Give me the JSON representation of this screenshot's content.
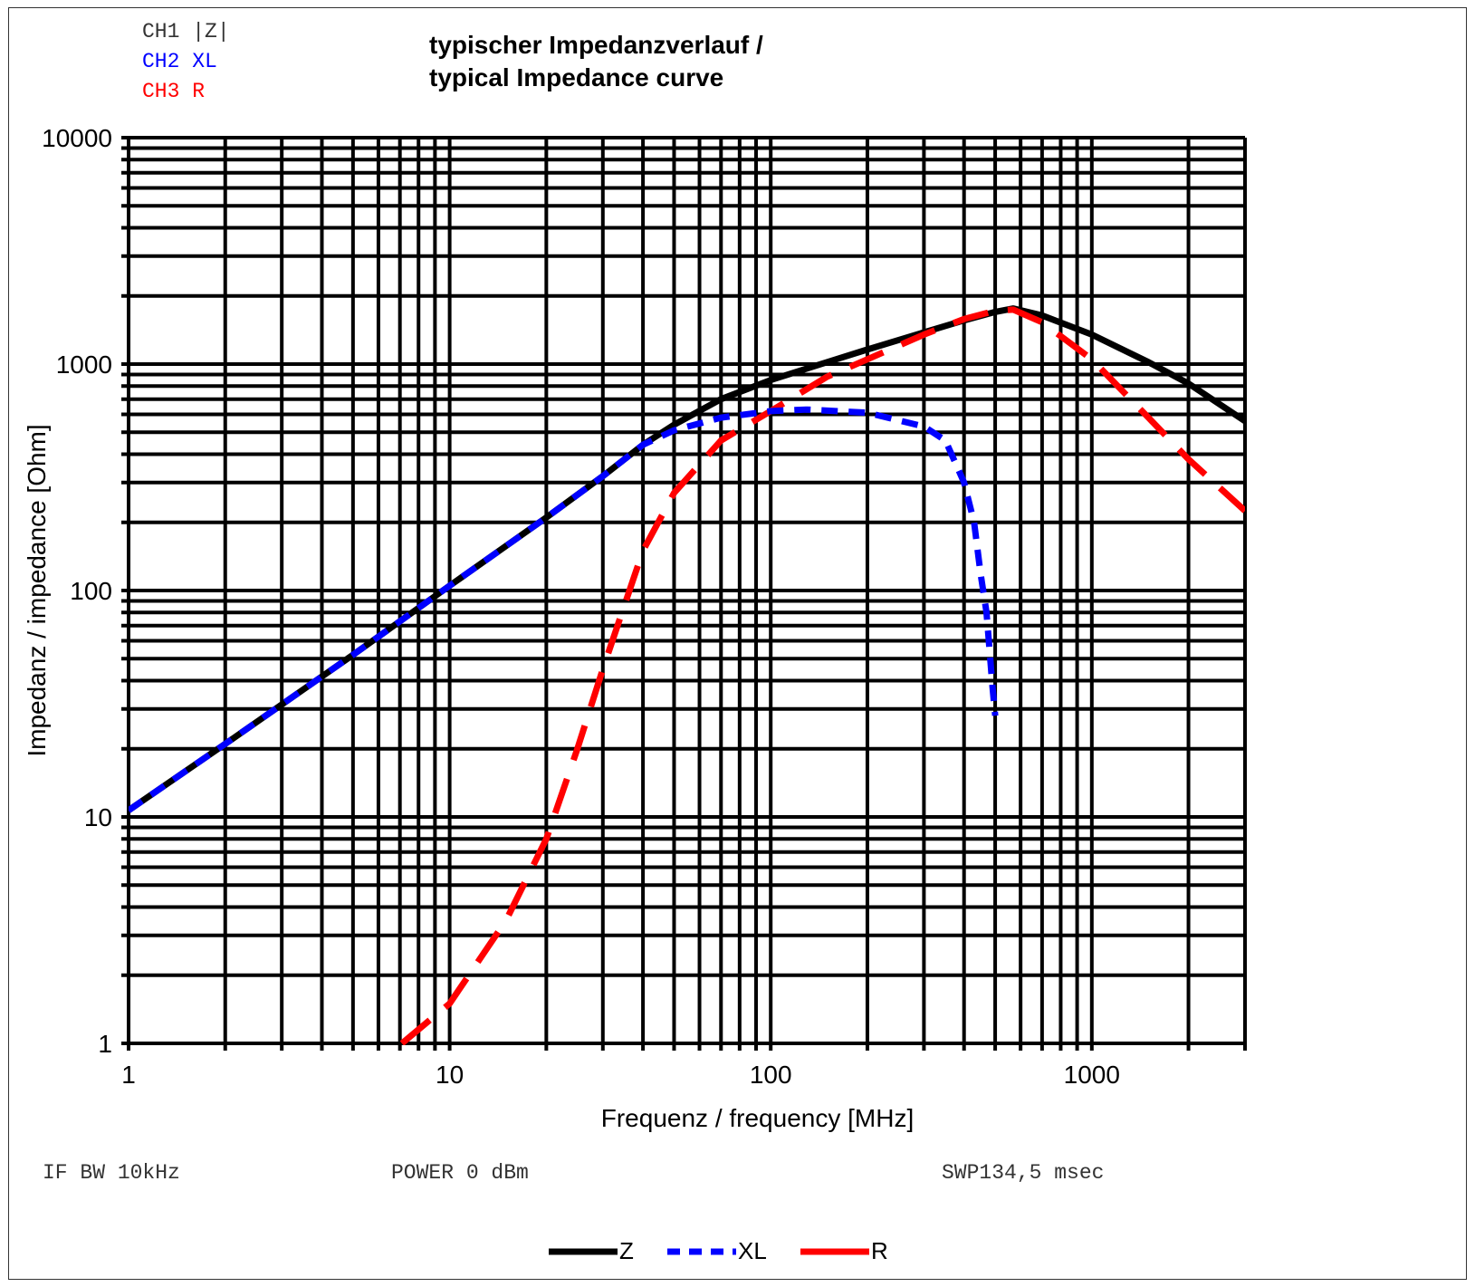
{
  "channels": [
    {
      "label": "CH1 |Z|",
      "color": "#333333"
    },
    {
      "label": "CH2 XL",
      "color": "#0000ff"
    },
    {
      "label": "CH3 R",
      "color": "#ff0000"
    }
  ],
  "title_line1": "typischer Impedanzverlauf /",
  "title_line2": "typical Impedance curve",
  "footer": {
    "if_bw": "IF BW 10kHz",
    "power": "POWER 0 dBm",
    "sweep": "SWP134,5 msec"
  },
  "chart_data": {
    "type": "line",
    "title": "typischer Impedanzverlauf / typical Impedance curve",
    "xlabel": "Frequenz / frequency [MHz]",
    "ylabel": "Impedanz / impedance [Ohm]",
    "xscale": "log",
    "yscale": "log",
    "xlim": [
      1,
      3000
    ],
    "ylim": [
      1,
      10000
    ],
    "xticks": [
      1,
      10,
      100,
      1000
    ],
    "xtick_labels": [
      "1",
      "10",
      "100",
      "1000"
    ],
    "yticks": [
      1,
      10,
      100,
      1000,
      10000
    ],
    "ytick_labels": [
      "1",
      "10",
      "100",
      "1000",
      "10000"
    ],
    "grid": true,
    "legend_position": "bottom-center",
    "series": [
      {
        "name": "Z",
        "color": "#000000",
        "dash": "solid",
        "x": [
          1,
          2,
          5,
          10,
          20,
          30,
          40,
          50,
          70,
          100,
          150,
          200,
          300,
          400,
          500,
          570,
          700,
          1000,
          1500,
          2000,
          3000
        ],
        "y": [
          10.7,
          21,
          52,
          105,
          210,
          320,
          440,
          540,
          700,
          850,
          1020,
          1160,
          1380,
          1560,
          1700,
          1760,
          1640,
          1350,
          1020,
          820,
          560
        ]
      },
      {
        "name": "XL",
        "color": "#0000ff",
        "dash": "dashed",
        "x": [
          1,
          2,
          5,
          10,
          20,
          30,
          40,
          50,
          70,
          100,
          130,
          200,
          300,
          350,
          400,
          430,
          450,
          470,
          480,
          490,
          500
        ],
        "y": [
          10.7,
          21,
          52,
          105,
          210,
          320,
          440,
          510,
          580,
          620,
          630,
          610,
          530,
          460,
          300,
          200,
          120,
          80,
          55,
          38,
          28
        ]
      },
      {
        "name": "R",
        "color": "#ff0000",
        "dash": "long-dashed",
        "x": [
          7.1,
          10,
          15,
          20,
          25,
          30,
          40,
          50,
          70,
          100,
          150,
          200,
          300,
          400,
          500,
          570,
          700,
          1000,
          1500,
          2000,
          3000
        ],
        "y": [
          1.0,
          1.5,
          3.5,
          8,
          20,
          45,
          150,
          270,
          460,
          620,
          880,
          1050,
          1350,
          1580,
          1720,
          1740,
          1530,
          1050,
          580,
          380,
          225
        ]
      }
    ]
  }
}
